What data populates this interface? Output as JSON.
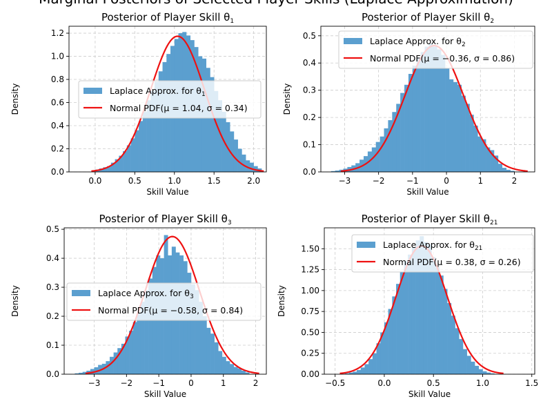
{
  "figure": {
    "suptitle": "Marginal Posteriors of Selected Player Skills (Laplace Approximation)",
    "bar_color": "#5b9fcf",
    "line_color": "#ee1111",
    "grid_color": "#cccccc"
  },
  "chart_data": [
    {
      "type": "bar",
      "title": "Posterior of Player Skill θ",
      "title_sub": "1",
      "xlabel": "Skill Value",
      "ylabel": "Density",
      "xlim": [
        -0.33,
        2.16
      ],
      "ylim": [
        0,
        1.26
      ],
      "xticks": [
        0.0,
        0.5,
        1.0,
        1.5,
        2.0
      ],
      "xtick_labels": [
        "0.0",
        "0.5",
        "1.0",
        "1.5",
        "2.0"
      ],
      "yticks": [
        0.0,
        0.2,
        0.4,
        0.6,
        0.8,
        1.0,
        1.2
      ],
      "ytick_labels": [
        "0.0",
        "0.2",
        "0.4",
        "0.6",
        "0.8",
        "1.0",
        "1.2"
      ],
      "grid": true,
      "legend_position": "center-right",
      "series": [
        {
          "name": "Laplace Approx. for θ",
          "name_sub": "1",
          "kind": "histogram"
        },
        {
          "name": "Normal PDF(μ = 1.04, σ = 0.34)",
          "kind": "line",
          "mu": 1.04,
          "sigma": 0.34
        }
      ],
      "hist": {
        "bin_width": 0.05,
        "x_start": 0.0,
        "values": [
          0.02,
          0.03,
          0.04,
          0.05,
          0.08,
          0.11,
          0.14,
          0.18,
          0.23,
          0.29,
          0.36,
          0.44,
          0.52,
          0.62,
          0.7,
          0.78,
          0.87,
          0.95,
          1.02,
          1.09,
          1.15,
          1.2,
          1.21,
          1.18,
          1.14,
          1.08,
          1.0,
          0.98,
          0.9,
          0.82,
          0.7,
          0.62,
          0.52,
          0.43,
          0.35,
          0.28,
          0.2,
          0.15,
          0.1,
          0.08,
          0.05,
          0.03
        ]
      }
    },
    {
      "type": "bar",
      "title": "Posterior of Player Skill θ",
      "title_sub": "2",
      "xlabel": "Skill Value",
      "ylabel": "Density",
      "xlim": [
        -3.7,
        2.6
      ],
      "ylim": [
        0,
        0.535
      ],
      "xticks": [
        -3,
        -2,
        -1,
        0,
        1,
        2
      ],
      "xtick_labels": [
        "−3",
        "−2",
        "−1",
        "0",
        "1",
        "2"
      ],
      "yticks": [
        0.0,
        0.1,
        0.2,
        0.3,
        0.4,
        0.5
      ],
      "ytick_labels": [
        "0.0",
        "0.1",
        "0.2",
        "0.3",
        "0.4",
        "0.5"
      ],
      "grid": true,
      "legend_position": "upper-right",
      "series": [
        {
          "name": "Laplace Approx. for θ",
          "name_sub": "2",
          "kind": "histogram"
        },
        {
          "name": "Normal PDF(μ = −0.36, σ = 0.86)",
          "kind": "line",
          "mu": -0.36,
          "sigma": 0.86
        }
      ],
      "hist": {
        "bin_width": 0.12,
        "x_start": -3.4,
        "values": [
          0.003,
          0.005,
          0.008,
          0.012,
          0.018,
          0.024,
          0.032,
          0.045,
          0.058,
          0.075,
          0.09,
          0.11,
          0.13,
          0.16,
          0.19,
          0.22,
          0.25,
          0.29,
          0.32,
          0.36,
          0.39,
          0.42,
          0.44,
          0.46,
          0.47,
          0.46,
          0.45,
          0.43,
          0.38,
          0.34,
          0.33,
          0.32,
          0.28,
          0.25,
          0.21,
          0.17,
          0.13,
          0.12,
          0.09,
          0.08,
          0.06,
          0.03,
          0.015,
          0.008,
          0.004
        ]
      }
    },
    {
      "type": "bar",
      "title": "Posterior of Player Skill θ",
      "title_sub": "3",
      "xlabel": "Skill Value",
      "ylabel": "Density",
      "xlim": [
        -3.93,
        2.33
      ],
      "ylim": [
        0,
        0.505
      ],
      "xticks": [
        -3,
        -2,
        -1,
        0,
        1,
        2
      ],
      "xtick_labels": [
        "−3",
        "−2",
        "−1",
        "0",
        "1",
        "2"
      ],
      "yticks": [
        0.0,
        0.1,
        0.2,
        0.3,
        0.4,
        0.5
      ],
      "ytick_labels": [
        "0.0",
        "0.1",
        "0.2",
        "0.3",
        "0.4",
        "0.5"
      ],
      "grid": true,
      "legend_position": "center",
      "series": [
        {
          "name": "Laplace Approx. for θ",
          "name_sub": "3",
          "kind": "histogram"
        },
        {
          "name": "Normal PDF(μ = −0.58, σ = 0.84)",
          "kind": "line",
          "mu": -0.58,
          "sigma": 0.84
        }
      ],
      "hist": {
        "bin_width": 0.12,
        "x_start": -3.6,
        "values": [
          0.003,
          0.005,
          0.008,
          0.012,
          0.018,
          0.024,
          0.032,
          0.036,
          0.045,
          0.06,
          0.075,
          0.09,
          0.105,
          0.13,
          0.15,
          0.18,
          0.21,
          0.25,
          0.29,
          0.33,
          0.37,
          0.41,
          0.4,
          0.48,
          0.41,
          0.44,
          0.42,
          0.41,
          0.39,
          0.35,
          0.31,
          0.29,
          0.25,
          0.2,
          0.16,
          0.14,
          0.11,
          0.08,
          0.06,
          0.045,
          0.035,
          0.025,
          0.02,
          0.012,
          0.006
        ]
      }
    },
    {
      "type": "bar",
      "title": "Posterior of Player Skill θ",
      "title_sub": "21",
      "xlabel": "Skill Value",
      "ylabel": "Density",
      "xlim": [
        -0.61,
        1.53
      ],
      "ylim": [
        0,
        1.75
      ],
      "xticks": [
        -0.5,
        0.0,
        0.5,
        1.0,
        1.5
      ],
      "xtick_labels": [
        "−0.5",
        "0.0",
        "0.5",
        "1.0",
        "1.5"
      ],
      "yticks": [
        0.0,
        0.25,
        0.5,
        0.75,
        1.0,
        1.25,
        1.5
      ],
      "ytick_labels": [
        "0.00",
        "0.25",
        "0.50",
        "0.75",
        "1.00",
        "1.25",
        "1.50"
      ],
      "grid": true,
      "legend_position": "upper-right",
      "series": [
        {
          "name": "Laplace Approx. for θ",
          "name_sub": "21",
          "kind": "histogram"
        },
        {
          "name": "Normal PDF(μ = 0.38, σ = 0.26)",
          "kind": "line",
          "mu": 0.38,
          "sigma": 0.26
        }
      ],
      "hist": {
        "bin_width": 0.04,
        "x_start": -0.4,
        "values": [
          0.01,
          0.02,
          0.03,
          0.05,
          0.08,
          0.12,
          0.18,
          0.25,
          0.37,
          0.5,
          0.62,
          0.78,
          0.93,
          1.08,
          1.22,
          1.35,
          1.43,
          1.52,
          1.6,
          1.65,
          1.58,
          1.55,
          1.4,
          1.28,
          1.18,
          1.02,
          0.85,
          0.7,
          0.55,
          0.42,
          0.3,
          0.22,
          0.15,
          0.1,
          0.06,
          0.035,
          0.02,
          0.01
        ]
      }
    }
  ]
}
